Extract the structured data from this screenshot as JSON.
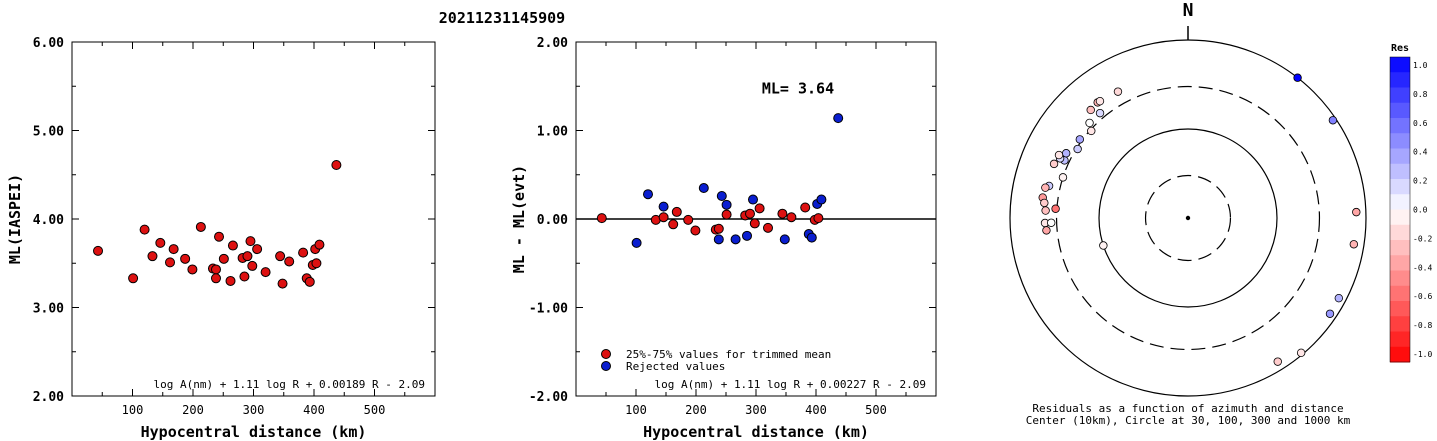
{
  "title": "20211231145909",
  "chart_data": [
    {
      "type": "scatter",
      "ylabel": "ML(IASPEI)",
      "xlabel": "Hypocentral distance (km)",
      "xlim": [
        0,
        600
      ],
      "ylim": [
        2.0,
        6.0
      ],
      "xticks": [
        "100",
        "200",
        "300",
        "400",
        "500"
      ],
      "yticks": [
        "2.00",
        "3.00",
        "4.00",
        "5.00",
        "6.00"
      ],
      "formula": "log A(nm) + 1.11 log R + 0.00189 R - 2.09",
      "color": "#dd1111",
      "points": [
        [
          43,
          3.64
        ],
        [
          101,
          3.33
        ],
        [
          120,
          3.88
        ],
        [
          133,
          3.58
        ],
        [
          146,
          3.73
        ],
        [
          162,
          3.51
        ],
        [
          168,
          3.66
        ],
        [
          187,
          3.55
        ],
        [
          199,
          3.43
        ],
        [
          213,
          3.91
        ],
        [
          233,
          3.44
        ],
        [
          238,
          3.43
        ],
        [
          238,
          3.33
        ],
        [
          243,
          3.8
        ],
        [
          251,
          3.55
        ],
        [
          262,
          3.3
        ],
        [
          266,
          3.7
        ],
        [
          282,
          3.56
        ],
        [
          285,
          3.35
        ],
        [
          290,
          3.58
        ],
        [
          295,
          3.75
        ],
        [
          298,
          3.47
        ],
        [
          306,
          3.66
        ],
        [
          320,
          3.4
        ],
        [
          344,
          3.58
        ],
        [
          348,
          3.27
        ],
        [
          359,
          3.52
        ],
        [
          382,
          3.62
        ],
        [
          388,
          3.33
        ],
        [
          393,
          3.29
        ],
        [
          398,
          3.48
        ],
        [
          402,
          3.66
        ],
        [
          404,
          3.5
        ],
        [
          409,
          3.71
        ],
        [
          437,
          4.61
        ]
      ]
    },
    {
      "type": "scatter",
      "ylabel": "ML - ML(evt)",
      "xlabel": "Hypocentral distance (km)",
      "xlim": [
        0,
        600
      ],
      "ylim": [
        -2.0,
        2.0
      ],
      "xticks": [
        "100",
        "200",
        "300",
        "400",
        "500"
      ],
      "yticks": [
        "-2.00",
        "-1.00",
        "0.00",
        "1.00",
        "2.00"
      ],
      "annotation": "ML= 3.64",
      "formula": "log A(nm) + 1.11 log R + 0.00227 R - 2.09",
      "legend": [
        "25%-75% values for trimmed mean",
        "Rejected values"
      ],
      "series": [
        {
          "name": "25%-75% values for trimmed mean",
          "color": "#dd1111",
          "points": [
            [
              43,
              0.01
            ],
            [
              133,
              -0.01
            ],
            [
              146,
              0.02
            ],
            [
              162,
              -0.06
            ],
            [
              168,
              0.08
            ],
            [
              187,
              -0.01
            ],
            [
              199,
              -0.13
            ],
            [
              233,
              -0.12
            ],
            [
              238,
              -0.11
            ],
            [
              251,
              0.05
            ],
            [
              282,
              0.04
            ],
            [
              290,
              0.06
            ],
            [
              298,
              -0.05
            ],
            [
              306,
              0.12
            ],
            [
              320,
              -0.1
            ],
            [
              344,
              0.06
            ],
            [
              359,
              0.02
            ],
            [
              382,
              0.13
            ],
            [
              398,
              -0.01
            ],
            [
              404,
              0.01
            ]
          ]
        },
        {
          "name": "Rejected values",
          "color": "#0a1ed0",
          "points": [
            [
              101,
              -0.27
            ],
            [
              120,
              0.28
            ],
            [
              146,
              0.14
            ],
            [
              213,
              0.35
            ],
            [
              238,
              -0.23
            ],
            [
              243,
              0.26
            ],
            [
              251,
              0.16
            ],
            [
              266,
              -0.23
            ],
            [
              285,
              -0.19
            ],
            [
              295,
              0.22
            ],
            [
              348,
              -0.23
            ],
            [
              388,
              -0.17
            ],
            [
              393,
              -0.21
            ],
            [
              402,
              0.17
            ],
            [
              409,
              0.22
            ],
            [
              437,
              1.14
            ]
          ]
        }
      ]
    }
  ],
  "polar": {
    "north_label": "N",
    "caption_line1": "Residuals as a function of azimuth and distance",
    "caption_line2": "Center (10km), Circle at 30, 100, 300 and 1000 km",
    "rings": [
      {
        "km": 30,
        "style": "dashed"
      },
      {
        "km": 100,
        "style": "solid"
      },
      {
        "km": 300,
        "style": "dashed"
      },
      {
        "km": 1000,
        "style": "solid"
      }
    ],
    "stations": [
      {
        "az": 318,
        "dist": 430,
        "res": -0.25
      },
      {
        "az": 322,
        "dist": 445,
        "res": -0.3
      },
      {
        "az": 323,
        "dist": 440,
        "res": -0.1
      },
      {
        "az": 331,
        "dist": 420,
        "res": -0.15
      },
      {
        "az": 320,
        "dist": 345,
        "res": 0.15
      },
      {
        "az": 314,
        "dist": 345,
        "res": 0.0
      },
      {
        "az": 306,
        "dist": 318,
        "res": 0.35
      },
      {
        "az": 312,
        "dist": 290,
        "res": -0.1
      },
      {
        "az": 302,
        "dist": 290,
        "res": 0.2
      },
      {
        "az": 295,
        "dist": 340,
        "res": 0.25
      },
      {
        "az": 298,
        "dist": 355,
        "res": 0.3
      },
      {
        "az": 288,
        "dist": 300,
        "res": -0.05
      },
      {
        "az": 295,
        "dist": 385,
        "res": 0.15
      },
      {
        "az": 296,
        "dist": 410,
        "res": -0.1
      },
      {
        "az": 283,
        "dist": 400,
        "res": 0.2
      },
      {
        "az": 292,
        "dist": 420,
        "res": -0.2
      },
      {
        "az": 282,
        "dist": 435,
        "res": -0.3
      },
      {
        "az": 278,
        "dist": 445,
        "res": -0.4
      },
      {
        "az": 276,
        "dist": 420,
        "res": -0.2
      },
      {
        "az": 273,
        "dist": 400,
        "res": -0.25
      },
      {
        "az": 268,
        "dist": 405,
        "res": -0.1
      },
      {
        "az": 265,
        "dist": 395,
        "res": -0.35
      },
      {
        "az": 268,
        "dist": 345,
        "res": 0.0
      },
      {
        "az": 274,
        "dist": 310,
        "res": -0.55
      },
      {
        "az": 252,
        "dist": 100,
        "res": -0.05
      },
      {
        "az": 38,
        "dist": 1000,
        "res": 1.0
      },
      {
        "az": 56,
        "dist": 920,
        "res": 0.5
      },
      {
        "az": 88,
        "dist": 780,
        "res": -0.35
      },
      {
        "az": 99,
        "dist": 770,
        "res": -0.3
      },
      {
        "az": 118,
        "dist": 830,
        "res": 0.3
      },
      {
        "az": 124,
        "dist": 840,
        "res": 0.4
      },
      {
        "az": 140,
        "dist": 950,
        "res": -0.1
      },
      {
        "az": 148,
        "dist": 800,
        "res": -0.2
      }
    ]
  },
  "colorbar": {
    "title": "Res",
    "ticks": [
      "1.0",
      "0.8",
      "0.6",
      "0.4",
      "0.2",
      "0.0",
      "-0.2",
      "-0.4",
      "-0.6",
      "-0.8",
      "-1.0"
    ],
    "max_color": "#0000ff",
    "min_color": "#ff0000"
  }
}
